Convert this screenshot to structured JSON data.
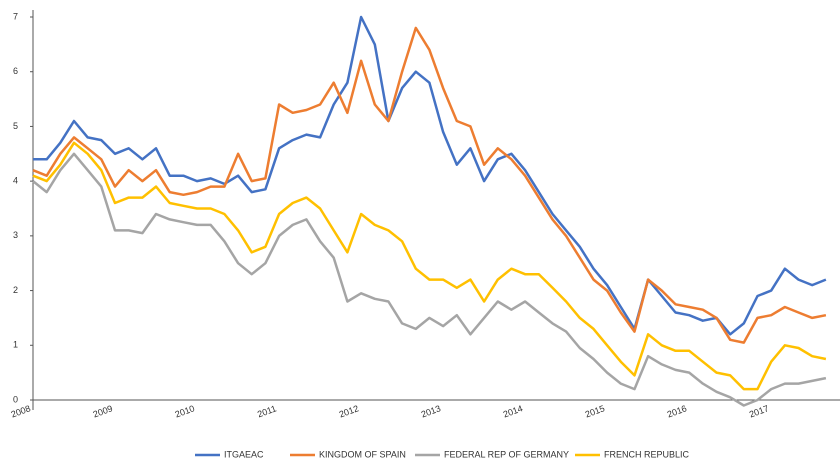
{
  "chart_data": {
    "type": "line",
    "categories": [
      "2008",
      null,
      null,
      null,
      null,
      null,
      "2009",
      null,
      null,
      null,
      null,
      null,
      "2010",
      null,
      null,
      null,
      null,
      null,
      "2011",
      null,
      null,
      null,
      null,
      null,
      "2012",
      null,
      null,
      null,
      null,
      null,
      "2013",
      null,
      null,
      null,
      null,
      null,
      "2014",
      null,
      null,
      null,
      null,
      null,
      "2015",
      null,
      null,
      null,
      null,
      null,
      "2016",
      null,
      null,
      null,
      null,
      null,
      "2017",
      null,
      null,
      null,
      null
    ],
    "series": [
      {
        "name": "ITGAEAC",
        "color": "#4472c4",
        "values": [
          4.4,
          4.4,
          4.7,
          5.1,
          4.8,
          4.75,
          4.5,
          4.6,
          4.4,
          4.6,
          4.1,
          4.1,
          4.0,
          4.05,
          3.95,
          4.1,
          3.8,
          3.85,
          4.6,
          4.75,
          4.85,
          4.8,
          5.4,
          5.8,
          7.0,
          6.5,
          5.1,
          5.7,
          6.0,
          5.8,
          4.9,
          4.3,
          4.6,
          4.0,
          4.4,
          4.5,
          4.2,
          3.8,
          3.4,
          3.1,
          2.8,
          2.4,
          2.1,
          1.7,
          1.3,
          2.2,
          1.9,
          1.6,
          1.55,
          1.45,
          1.5,
          1.2,
          1.4,
          1.9,
          2.0,
          2.4,
          2.2,
          2.1,
          2.2
        ]
      },
      {
        "name": "KINGDOM OF SPAIN",
        "color": "#ed7d31",
        "values": [
          4.2,
          4.1,
          4.5,
          4.8,
          4.6,
          4.4,
          3.9,
          4.2,
          4.0,
          4.2,
          3.8,
          3.75,
          3.8,
          3.9,
          3.9,
          4.5,
          4.0,
          4.05,
          5.4,
          5.25,
          5.3,
          5.4,
          5.8,
          5.25,
          6.2,
          5.4,
          5.1,
          6.0,
          6.8,
          6.4,
          5.7,
          5.1,
          5.0,
          4.3,
          4.6,
          4.4,
          4.1,
          3.7,
          3.3,
          3.0,
          2.6,
          2.2,
          2.0,
          1.6,
          1.25,
          2.2,
          2.0,
          1.75,
          1.7,
          1.65,
          1.5,
          1.1,
          1.05,
          1.5,
          1.55,
          1.7,
          1.6,
          1.5,
          1.55
        ]
      },
      {
        "name": "FEDERAL REP OF GERMANY",
        "color": "#a5a5a5",
        "values": [
          4.0,
          3.8,
          4.2,
          4.5,
          4.2,
          3.9,
          3.1,
          3.1,
          3.05,
          3.4,
          3.3,
          3.25,
          3.2,
          3.2,
          2.9,
          2.5,
          2.3,
          2.5,
          3.0,
          3.2,
          3.3,
          2.9,
          2.6,
          1.8,
          1.95,
          1.85,
          1.8,
          1.4,
          1.3,
          1.5,
          1.35,
          1.55,
          1.2,
          1.5,
          1.8,
          1.65,
          1.8,
          1.6,
          1.4,
          1.25,
          0.95,
          0.75,
          0.5,
          0.3,
          0.2,
          0.8,
          0.65,
          0.55,
          0.5,
          0.3,
          0.15,
          0.05,
          -0.1,
          0.0,
          0.2,
          0.3,
          0.3,
          0.35,
          0.4
        ]
      },
      {
        "name": "FRENCH REPUBLIC",
        "color": "#ffc000",
        "values": [
          4.1,
          4.0,
          4.3,
          4.7,
          4.5,
          4.2,
          3.6,
          3.7,
          3.7,
          3.9,
          3.6,
          3.55,
          3.5,
          3.5,
          3.4,
          3.1,
          2.7,
          2.8,
          3.4,
          3.6,
          3.7,
          3.5,
          3.1,
          2.7,
          3.4,
          3.2,
          3.1,
          2.9,
          2.4,
          2.2,
          2.2,
          2.05,
          2.2,
          1.8,
          2.2,
          2.4,
          2.3,
          2.3,
          2.05,
          1.8,
          1.5,
          1.3,
          1.0,
          0.7,
          0.45,
          1.2,
          1.0,
          0.9,
          0.9,
          0.7,
          0.5,
          0.45,
          0.2,
          0.2,
          0.7,
          1.0,
          0.95,
          0.8,
          0.75
        ]
      }
    ],
    "ylim": [
      0,
      7
    ],
    "yticks": [
      0,
      1,
      2,
      3,
      4,
      5,
      6,
      7
    ],
    "legend": "bottom"
  }
}
